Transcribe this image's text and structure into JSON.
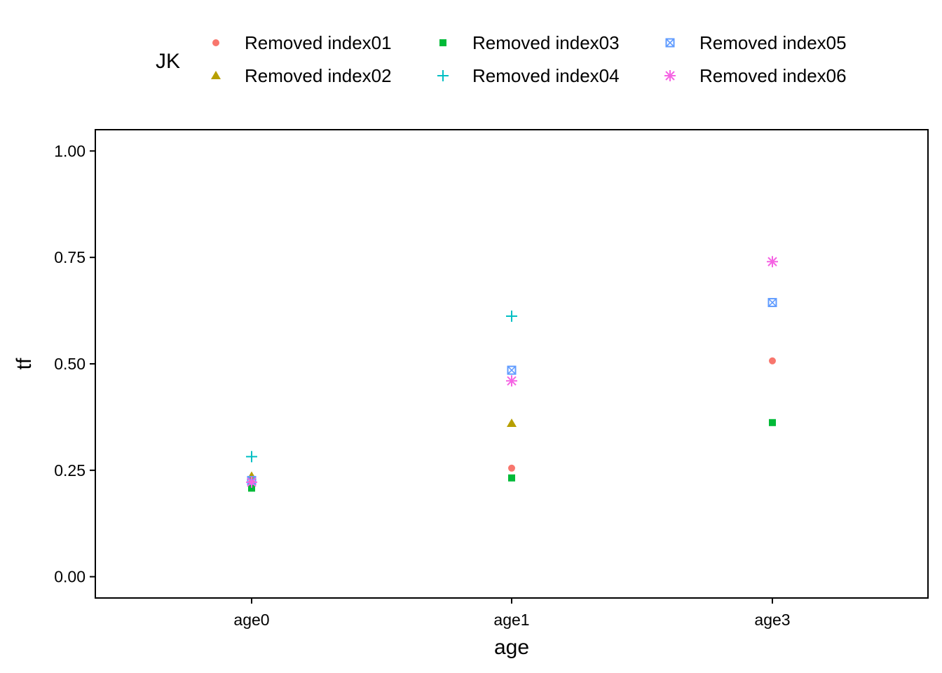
{
  "chart_data": {
    "type": "scatter",
    "title": "",
    "xlabel": "age",
    "ylabel": "tf",
    "categories": [
      "age0",
      "age1",
      "age3"
    ],
    "ylim": [
      -0.05,
      1.05
    ],
    "yticks": [
      0.0,
      0.25,
      0.5,
      0.75,
      1.0
    ],
    "ytick_labels": [
      "0.00",
      "0.25",
      "0.50",
      "0.75",
      "1.00"
    ],
    "grid": false,
    "legend": {
      "title": "JK",
      "placement": "top",
      "columns": 3
    },
    "series": [
      {
        "name": "Removed index01",
        "shape": "circle",
        "color": "#F8766D",
        "values": [
          0.22,
          0.255,
          0.507
        ]
      },
      {
        "name": "Removed index02",
        "shape": "triangle",
        "color": "#B79F00",
        "values": [
          0.236,
          0.36,
          null
        ]
      },
      {
        "name": "Removed index03",
        "shape": "square",
        "color": "#00BA38",
        "values": [
          0.208,
          0.232,
          0.362
        ]
      },
      {
        "name": "Removed index04",
        "shape": "plus",
        "color": "#00BFC4",
        "values": [
          0.282,
          0.612,
          null
        ]
      },
      {
        "name": "Removed index05",
        "shape": "boxed-x",
        "color": "#619CFF",
        "values": [
          0.226,
          0.485,
          0.644
        ]
      },
      {
        "name": "Removed index06",
        "shape": "asterisk",
        "color": "#F564E3",
        "values": [
          0.222,
          0.46,
          0.74
        ]
      }
    ]
  }
}
